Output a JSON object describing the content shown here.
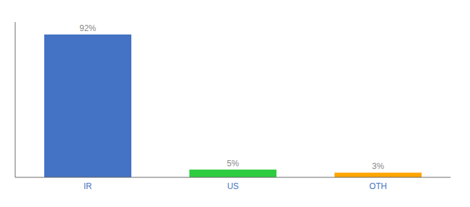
{
  "chart_data": {
    "type": "bar",
    "categories": [
      "IR",
      "US",
      "OTH"
    ],
    "values": [
      92,
      5,
      3
    ],
    "value_labels": [
      "92%",
      "5%",
      "3%"
    ],
    "colors": [
      "#4472C4",
      "#2ECC40",
      "#FFA500"
    ],
    "ylim": [
      0,
      100
    ],
    "data_labels": true,
    "tick_labels": "x",
    "grid": false
  }
}
